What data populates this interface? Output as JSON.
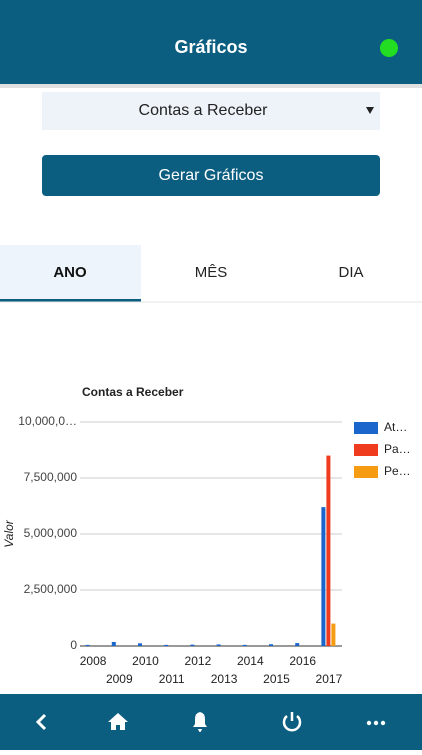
{
  "header": {
    "title": "Gráficos"
  },
  "form": {
    "select": "Contas a Receber",
    "button": "Gerar Gráficos"
  },
  "tabs": [
    "ANO",
    "MÊS",
    "DIA"
  ],
  "chart_data": {
    "type": "bar",
    "title": "Contas a Receber",
    "y_label": "Valor",
    "categories": [
      "2008",
      "2009",
      "2010",
      "2011",
      "2012",
      "2013",
      "2014",
      "2015",
      "2016",
      "2017"
    ],
    "series": [
      {
        "name": "At…",
        "color": "#1a66cc",
        "values": [
          50000,
          180000,
          120000,
          50000,
          60000,
          70000,
          50000,
          80000,
          130000,
          6200000
        ]
      },
      {
        "name": "Pa…",
        "color": "#f03c1e",
        "values": [
          0,
          0,
          0,
          0,
          0,
          0,
          0,
          0,
          0,
          8500000
        ]
      },
      {
        "name": "Pe…",
        "color": "#f59c12",
        "values": [
          0,
          0,
          0,
          0,
          0,
          0,
          0,
          0,
          0,
          1000000
        ]
      }
    ],
    "ylim": [
      0,
      10000000
    ],
    "yticks": [
      0,
      {
        "value": 2500000,
        "label": "2,500,000"
      },
      {
        "value": 5000000,
        "label": "5,000,000"
      },
      {
        "value": 7500000,
        "label": "7,500,000"
      },
      {
        "value": 10000000,
        "label": "10,000,0…"
      }
    ],
    "grid": true,
    "legend": "right"
  }
}
